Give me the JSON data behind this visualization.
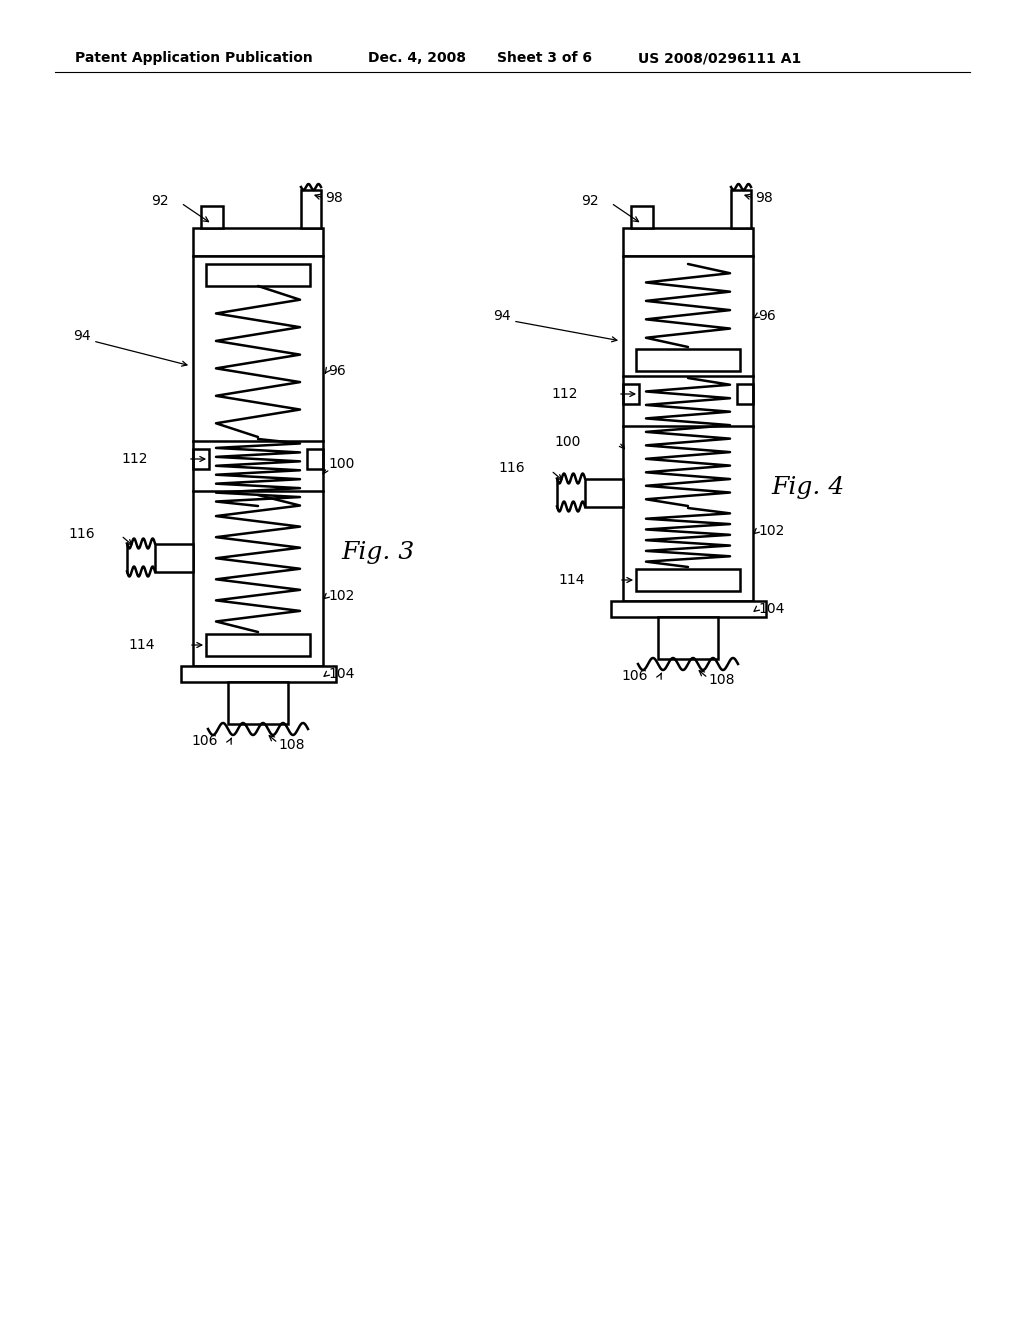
{
  "background_color": "#ffffff",
  "header_text": "Patent Application Publication",
  "header_date": "Dec. 4, 2008",
  "header_sheet": "Sheet 3 of 6",
  "header_patent": "US 2008/0296111 A1",
  "fig3_label": "Fig. 3",
  "fig4_label": "Fig. 4",
  "line_color": "#000000",
  "lw": 1.8,
  "label_fontsize": 10,
  "header_fontsize": 10,
  "fig_label_fontsize": 18
}
